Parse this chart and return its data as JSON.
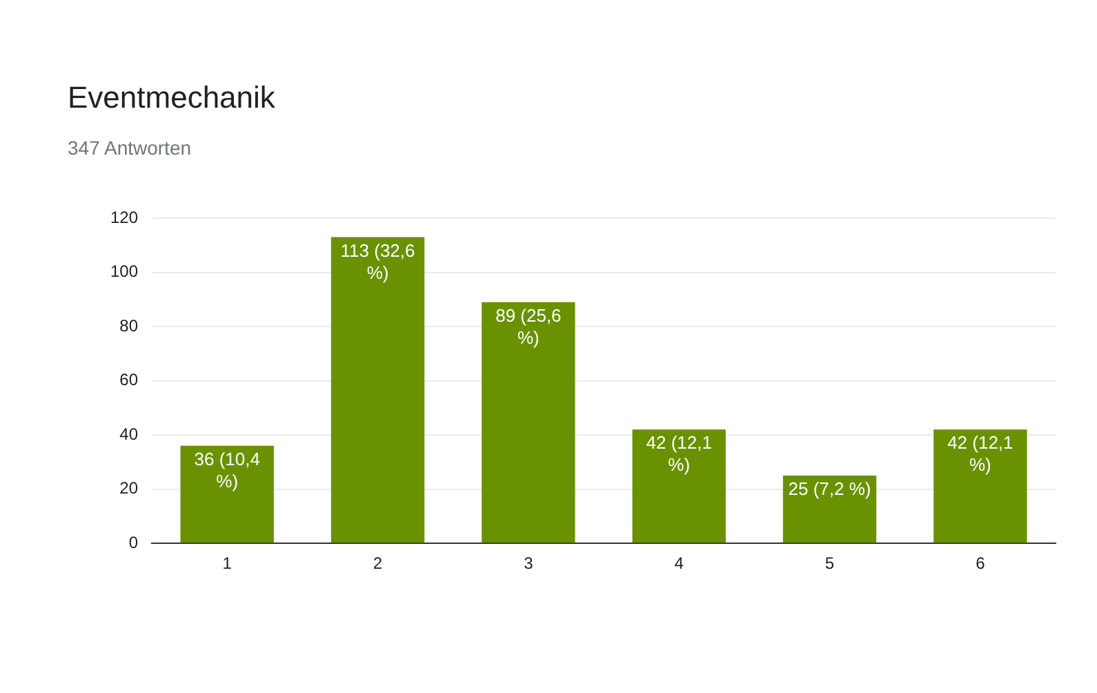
{
  "chart_data": {
    "type": "bar",
    "title": "Eventmechanik",
    "subtitle": "347 Antworten",
    "categories": [
      "1",
      "2",
      "3",
      "4",
      "5",
      "6"
    ],
    "values": [
      36,
      113,
      89,
      42,
      25,
      42
    ],
    "value_labels": [
      "36 (10,4 %)",
      "113 (32,6 %)",
      "89 (25,6 %)",
      "42 (12,1 %)",
      "25 (7,2 %)",
      "42 (12,1 %)"
    ],
    "color": "#6a9100",
    "ylim": [
      0,
      120
    ],
    "yticks": [
      0,
      20,
      40,
      60,
      80,
      100,
      120
    ],
    "grid": "y",
    "legend": false
  }
}
